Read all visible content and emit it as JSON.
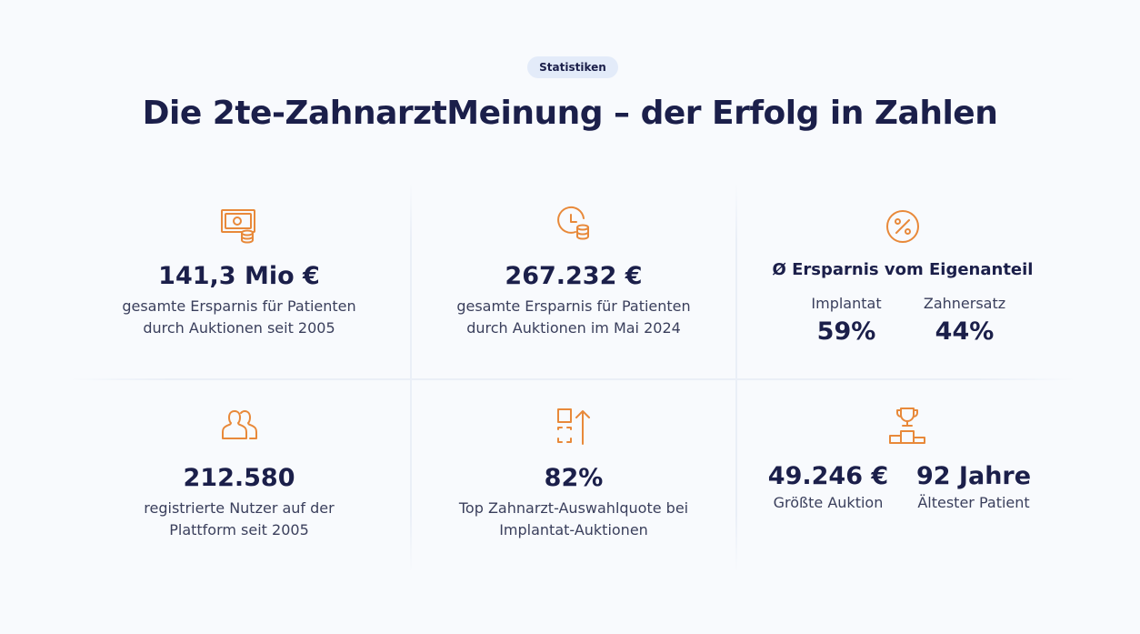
{
  "badge": "Statistiken",
  "title": "Die 2te-ZahnarztMeinung – der Erfolg in Zahlen",
  "accent_color": "#e8893a",
  "stats": {
    "savings_total": {
      "icon": "money-coins-icon",
      "value": "141,3 Mio €",
      "desc_line1": "gesamte Ersparnis für Patienten",
      "desc_line2": "durch Auktionen seit 2005"
    },
    "savings_month": {
      "icon": "clock-coins-icon",
      "value": "267.232 €",
      "desc_line1": "gesamte Ersparnis für Patienten",
      "desc_line2": "durch Auktionen im Mai 2024"
    },
    "avg_savings": {
      "icon": "percent-circle-icon",
      "heading": "Ø Ersparnis vom Eigenanteil",
      "items": [
        {
          "label": "Implantat",
          "value": "59%"
        },
        {
          "label": "Zahnersatz",
          "value": "44%"
        }
      ]
    },
    "users": {
      "icon": "users-icon",
      "value": "212.580",
      "desc_line1": "registrierte Nutzer auf der",
      "desc_line2": "Plattform seit 2005"
    },
    "selection_rate": {
      "icon": "select-arrow-up-icon",
      "value": "82%",
      "desc_line1": "Top Zahnarzt-Auswahlquote bei",
      "desc_line2": "Implantat-Auktionen"
    },
    "records": {
      "icon": "trophy-podium-icon",
      "items": [
        {
          "value": "49.246 €",
          "label": "Größte Auktion"
        },
        {
          "value": "92 Jahre",
          "label": "Ältester Patient"
        }
      ]
    }
  }
}
